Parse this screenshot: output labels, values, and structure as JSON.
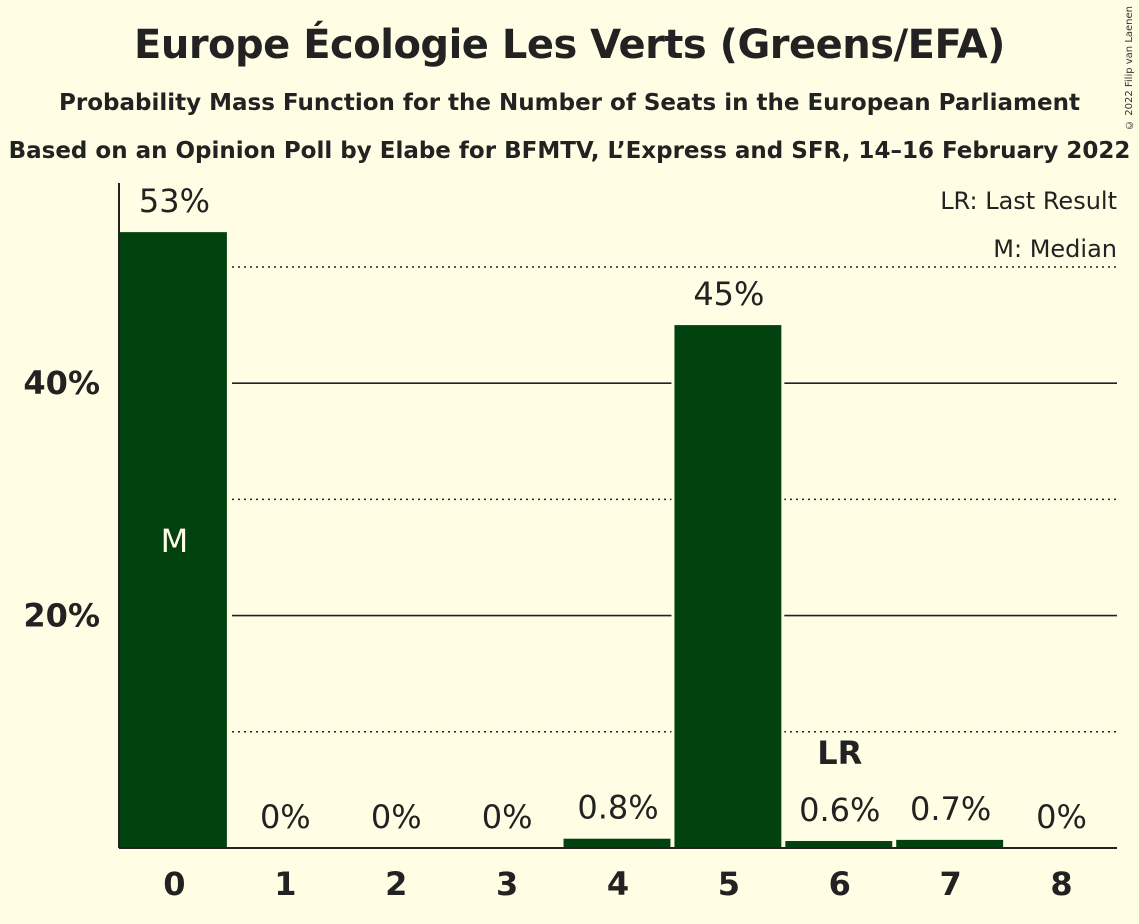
{
  "header": {
    "title": "Europe Écologie Les Verts (Greens/EFA)",
    "subtitle": "Probability Mass Function for the Number of Seats in the European Parliament",
    "source": "Based on an Opinion Poll by Elabe for BFMTV, L’Express and SFR, 14–16 February 2022",
    "copyright": "© 2022 Filip van Laenen"
  },
  "legend": {
    "last_result": "LR: Last Result",
    "median": "M: Median"
  },
  "colors": {
    "background": "#FFFEE5",
    "bar": "#02420F",
    "text": "#222222"
  },
  "chart_data": {
    "type": "bar",
    "title": "Europe Écologie Les Verts (Greens/EFA)",
    "categories": [
      "0",
      "1",
      "2",
      "3",
      "4",
      "5",
      "6",
      "7",
      "8"
    ],
    "values": [
      53,
      0,
      0,
      0,
      0.8,
      45,
      0.6,
      0.7,
      0
    ],
    "labels": [
      "53%",
      "0%",
      "0%",
      "0%",
      "0.8%",
      "45%",
      "0.6%",
      "0.7%",
      "0%"
    ],
    "ylim": [
      0,
      57
    ],
    "yticks": [
      {
        "value": 20,
        "label": "20%"
      },
      {
        "value": 40,
        "label": "40%"
      }
    ],
    "dotted_gridlines": [
      10,
      30,
      50
    ],
    "median_seat": "0",
    "median_marker": "M",
    "last_result_seat": "6",
    "last_result_marker": "LR",
    "legend_position": "top-right"
  }
}
